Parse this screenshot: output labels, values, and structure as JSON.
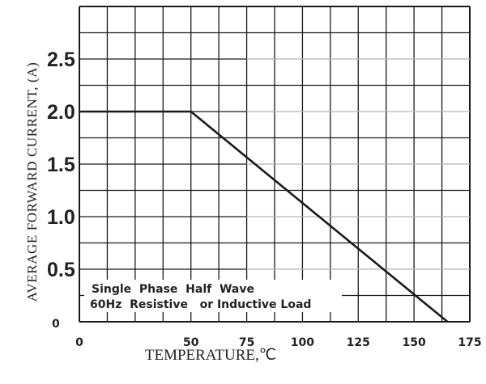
{
  "chart_data": {
    "type": "line",
    "xlabel": "TEMPERATURE,℃",
    "ylabel": "AVERAGE  FORWARD  CURRENT, (A)",
    "xlim": [
      0,
      175
    ],
    "ylim": [
      0,
      3.0
    ],
    "x_ticks": [
      "0",
      "50",
      "75",
      "100",
      "125",
      "150",
      "175"
    ],
    "x_tick_values": [
      0,
      50,
      75,
      100,
      125,
      150,
      175
    ],
    "y_ticks": [
      "0",
      "0.5",
      "1.0",
      "1.5",
      "2.0",
      "2.5"
    ],
    "y_tick_values": [
      0,
      0.5,
      1.0,
      1.5,
      2.0,
      2.5
    ],
    "grid": true,
    "series": [
      {
        "x": [
          0,
          50,
          165
        ],
        "y": [
          2.0,
          2.0,
          0
        ]
      }
    ],
    "annotations": [
      "Single  Phase  Half  Wave",
      "60Hz  Resistive   or Inductive Load"
    ],
    "line_color": "#1a1a1a",
    "grid_color": "#1a1a1a",
    "faint_grid_color": "#b5b5b5"
  }
}
